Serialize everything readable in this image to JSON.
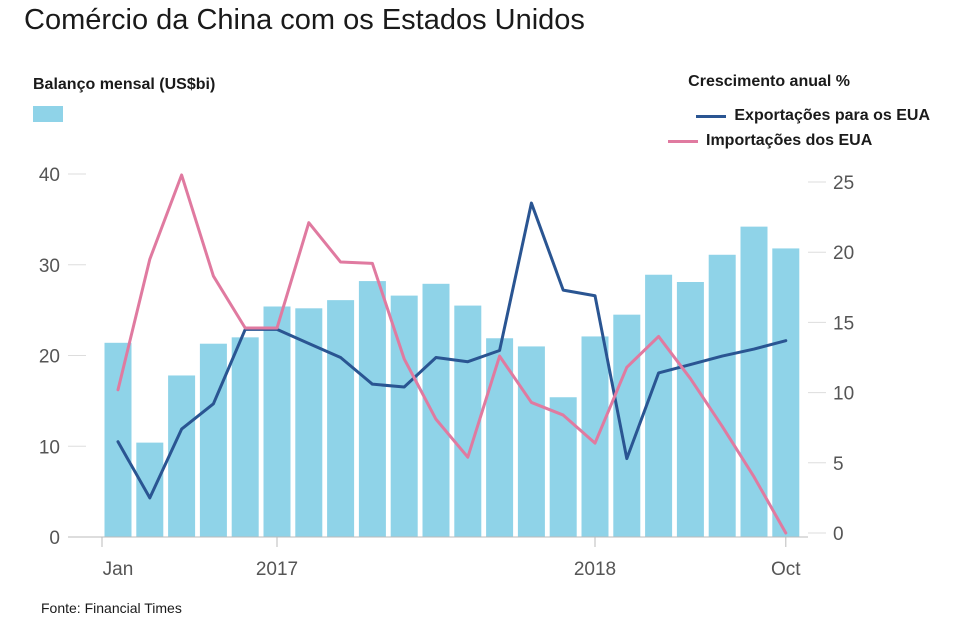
{
  "title": "Comércio da China com os Estados Unidos",
  "source": "Fonte: Financial Times",
  "colors": {
    "bars": "#8fd3e8",
    "exports": "#2a5592",
    "imports": "#e07aa0",
    "grid": "#dddddd"
  },
  "chart_data": {
    "type": "bar",
    "left_axis_label": "Balanço mensal (US$bi)",
    "right_axis_label": "Crescimento anual %",
    "left_ylim": [
      0,
      40
    ],
    "right_ylim": [
      0,
      25
    ],
    "left_ticks": [
      "0",
      "10",
      "20",
      "30",
      "40"
    ],
    "right_ticks": [
      "0",
      "5",
      "10",
      "15",
      "20",
      "25"
    ],
    "x_tick_labels": [
      {
        "index": 0,
        "label": "Jan"
      },
      {
        "index": 5,
        "label": "2017"
      },
      {
        "index": 15,
        "label": "2018"
      },
      {
        "index": 21,
        "label": "Oct"
      }
    ],
    "bars": {
      "name": "",
      "values": [
        21.4,
        10.4,
        17.8,
        21.3,
        22.0,
        25.4,
        25.2,
        26.1,
        28.2,
        26.6,
        27.9,
        25.5,
        21.9,
        21.0,
        15.4,
        22.1,
        24.5,
        28.9,
        28.1,
        31.1,
        34.2,
        31.8
      ]
    },
    "series": [
      {
        "name": "Exportações para os EUA",
        "color": "#2a5592",
        "values": [
          6.5,
          2.5,
          7.4,
          9.2,
          14.5,
          14.5,
          13.5,
          12.5,
          10.6,
          10.4,
          12.5,
          12.2,
          13.0,
          23.5,
          17.3,
          16.9,
          5.3,
          11.4,
          12.0,
          12.6,
          13.1,
          13.7
        ]
      },
      {
        "name": "Importações dos EUA",
        "color": "#e07aa0",
        "values": [
          10.2,
          19.5,
          25.5,
          18.3,
          14.6,
          14.6,
          22.1,
          19.3,
          19.2,
          12.4,
          8.1,
          5.4,
          12.6,
          9.3,
          8.4,
          6.4,
          11.8,
          14.0,
          11.0,
          7.6,
          4.0,
          0.0
        ]
      }
    ]
  }
}
